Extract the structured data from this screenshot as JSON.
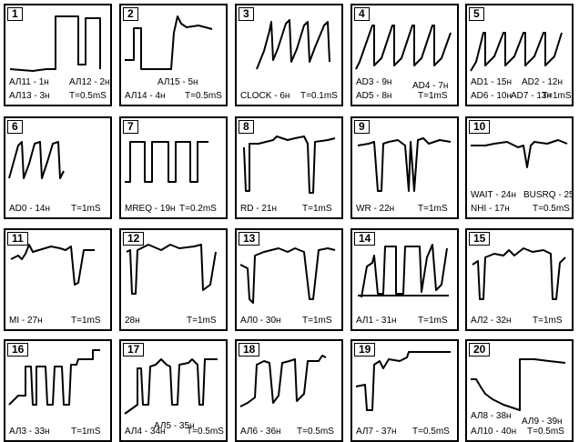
{
  "panels": [
    {
      "num": "1",
      "labels": [
        "АЛ11 - 1н",
        "АЛ12 - 2н",
        "АЛ13 - 3н",
        "T=0.5mS"
      ]
    },
    {
      "num": "2",
      "labels": [
        "АЛ15 - 5н",
        "АЛ14 - 4н",
        "T=0.5mS"
      ]
    },
    {
      "num": "3",
      "labels": [
        "CLOCK - 6н",
        "T=0.1mS"
      ]
    },
    {
      "num": "4",
      "labels": [
        "AD3 - 9н",
        "AD4 - 7н",
        "AD5 - 8н",
        "T=1mS"
      ]
    },
    {
      "num": "5",
      "labels": [
        "AD1 - 15н",
        "AD2 - 12н",
        "AD6 - 10н",
        "AD7 - 13н",
        "T=1mS"
      ]
    },
    {
      "num": "6",
      "labels": [
        "AD0 - 14н",
        "T=1mS"
      ]
    },
    {
      "num": "7",
      "labels": [
        "MREQ - 19н",
        "T=0.2mS"
      ]
    },
    {
      "num": "8",
      "labels": [
        "RD - 21н",
        "T=1mS"
      ]
    },
    {
      "num": "9",
      "labels": [
        "WR - 22н",
        "T=1mS"
      ]
    },
    {
      "num": "10",
      "labels": [
        "WAIT - 24н",
        "BUSRQ - 25",
        "NHI - 17н",
        "T=0.5mS"
      ]
    },
    {
      "num": "11",
      "labels": [
        "MI - 27н",
        "T=1mS"
      ]
    },
    {
      "num": "12",
      "labels": [
        "28н",
        "T=1mS"
      ]
    },
    {
      "num": "13",
      "labels": [
        "АЛ0 - 30н",
        "T=1mS"
      ]
    },
    {
      "num": "14",
      "labels": [
        "АЛ1 - 31н",
        "T=1mS"
      ]
    },
    {
      "num": "15",
      "labels": [
        "АЛ2 - 32н",
        "T=1mS"
      ]
    },
    {
      "num": "16",
      "labels": [
        "АЛ3 - 33н",
        "T=1mS"
      ]
    },
    {
      "num": "17",
      "labels": [
        "АЛ4 - 34н",
        "АЛ5 - 35н",
        "T=0.5mS"
      ]
    },
    {
      "num": "18",
      "labels": [
        "АЛ6 - 36н",
        "T=0.5mS"
      ]
    },
    {
      "num": "19",
      "labels": [
        "АЛ7 - 37н",
        "T=0.5mS"
      ]
    },
    {
      "num": "20",
      "labels": [
        "АЛ8 - 38н",
        "АЛ9 - 39н",
        "АЛ10 - 40н",
        "T=0.5mS"
      ]
    }
  ]
}
